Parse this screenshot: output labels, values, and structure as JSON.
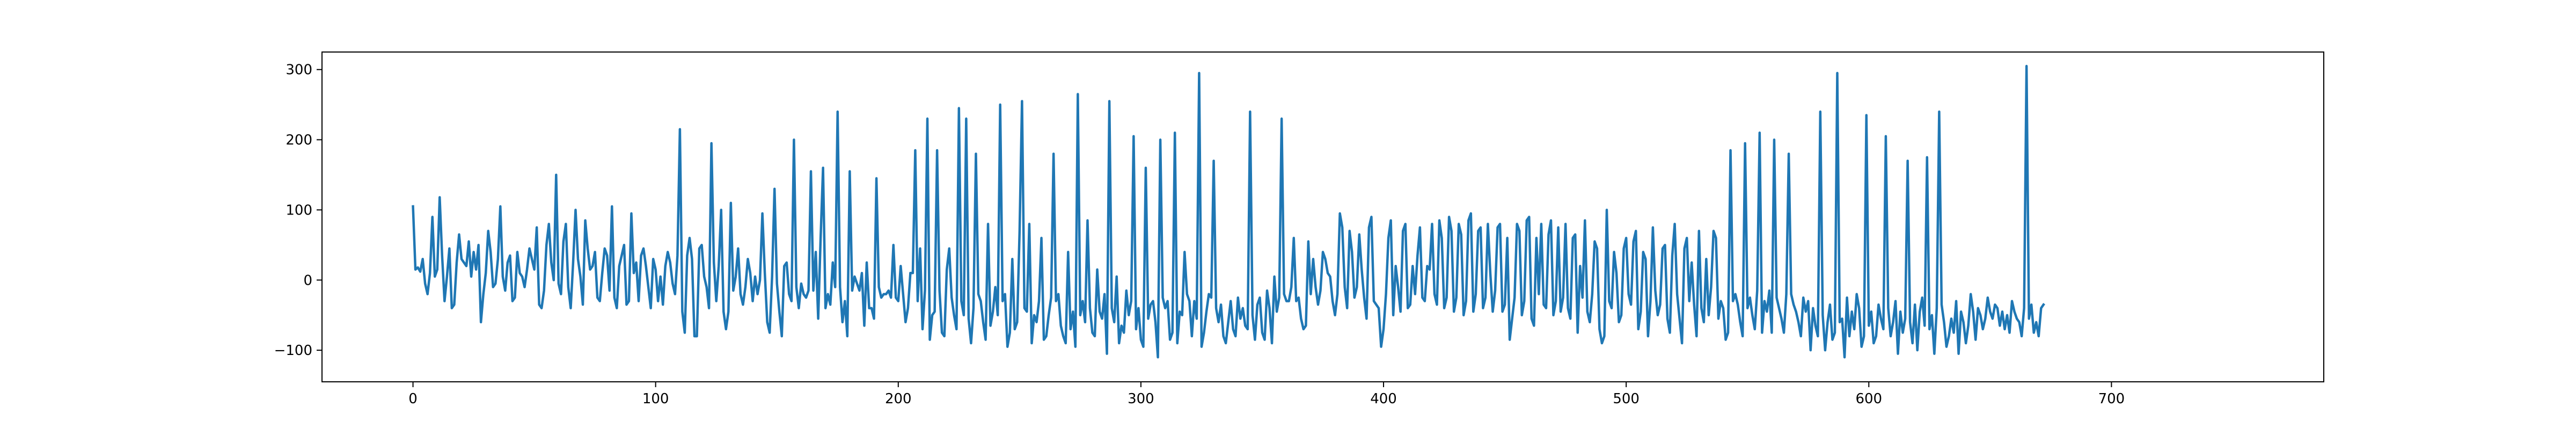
{
  "colors": {
    "line": "#1f77b4",
    "axes": "#000000",
    "background": "#ffffff"
  },
  "chart_data": {
    "type": "line",
    "title": "",
    "xlabel": "",
    "ylabel": "",
    "grid": false,
    "legend": "none",
    "xlim": [
      -37.5,
      787.5
    ],
    "ylim": [
      -145,
      325
    ],
    "xticks": [
      0,
      100,
      200,
      300,
      400,
      500,
      600,
      700
    ],
    "xtick_labels": [
      "0",
      "100",
      "200",
      "300",
      "400",
      "500",
      "600",
      "700"
    ],
    "yticks": [
      -100,
      0,
      100,
      200,
      300
    ],
    "ytick_labels": [
      "−100",
      "0",
      "100",
      "200",
      "300"
    ],
    "series": [
      {
        "color": "#1f77b4",
        "x_start": 0,
        "x_step": 1,
        "y": [
          105,
          15,
          18,
          12,
          30,
          -5,
          -20,
          10,
          90,
          5,
          15,
          118,
          35,
          -30,
          5,
          45,
          -40,
          -35,
          25,
          65,
          30,
          25,
          20,
          55,
          5,
          40,
          15,
          50,
          -60,
          -20,
          10,
          70,
          40,
          -10,
          -5,
          30,
          105,
          5,
          -15,
          25,
          35,
          -30,
          -25,
          40,
          10,
          5,
          -10,
          15,
          45,
          30,
          15,
          75,
          -35,
          -40,
          -15,
          50,
          80,
          25,
          0,
          150,
          -5,
          -20,
          55,
          80,
          -10,
          -40,
          25,
          100,
          30,
          5,
          -35,
          85,
          45,
          15,
          20,
          40,
          -25,
          -30,
          10,
          45,
          35,
          -15,
          105,
          -25,
          -40,
          20,
          35,
          50,
          -35,
          -30,
          95,
          10,
          25,
          -30,
          35,
          45,
          20,
          -10,
          -40,
          30,
          15,
          -30,
          5,
          -35,
          20,
          40,
          25,
          -5,
          -20,
          35,
          215,
          -45,
          -75,
          35,
          60,
          30,
          -80,
          -80,
          45,
          50,
          5,
          -10,
          -40,
          195,
          25,
          -30,
          20,
          100,
          -45,
          -70,
          -45,
          110,
          -15,
          5,
          45,
          -20,
          -35,
          -10,
          30,
          10,
          -30,
          5,
          -20,
          0,
          95,
          10,
          -60,
          -75,
          5,
          130,
          -5,
          -45,
          -80,
          20,
          25,
          -20,
          -30,
          200,
          -10,
          -40,
          -5,
          -20,
          -25,
          -15,
          155,
          -15,
          40,
          -55,
          60,
          160,
          -40,
          -20,
          -35,
          25,
          -10,
          240,
          -10,
          -60,
          -30,
          -80,
          155,
          -15,
          5,
          -5,
          -15,
          10,
          -65,
          25,
          -40,
          -40,
          -55,
          145,
          -10,
          -25,
          -20,
          -20,
          -15,
          -25,
          50,
          -25,
          -30,
          20,
          -20,
          -60,
          -40,
          10,
          10,
          185,
          -30,
          45,
          -70,
          -15,
          230,
          -85,
          -50,
          -45,
          185,
          -15,
          -75,
          -80,
          15,
          45,
          -25,
          -50,
          -70,
          245,
          -30,
          -50,
          230,
          -55,
          -90,
          -40,
          180,
          -20,
          -30,
          -60,
          -85,
          80,
          -65,
          -45,
          -10,
          -50,
          250,
          -30,
          -20,
          -95,
          -75,
          30,
          -70,
          -60,
          70,
          255,
          -40,
          -45,
          80,
          -90,
          -50,
          -60,
          -30,
          60,
          -85,
          -80,
          -50,
          -25,
          180,
          -30,
          -20,
          -65,
          -80,
          -90,
          40,
          -70,
          -45,
          -95,
          265,
          -50,
          -30,
          -60,
          85,
          -40,
          -75,
          -80,
          15,
          -45,
          -55,
          -20,
          -105,
          255,
          -40,
          -60,
          5,
          -90,
          -65,
          -75,
          -15,
          -50,
          -30,
          205,
          -70,
          -40,
          -85,
          -95,
          160,
          -55,
          -35,
          -30,
          -60,
          -110,
          200,
          -25,
          -40,
          -30,
          -85,
          -75,
          210,
          -90,
          -45,
          -50,
          40,
          -20,
          -30,
          -80,
          -30,
          -55,
          295,
          -95,
          -75,
          -45,
          -20,
          -25,
          170,
          -40,
          -60,
          -35,
          -80,
          -90,
          -60,
          -30,
          -70,
          -80,
          -25,
          -55,
          -40,
          -65,
          -70,
          240,
          -50,
          -85,
          -35,
          -25,
          -75,
          -85,
          -15,
          -40,
          -90,
          5,
          -45,
          -25,
          230,
          -20,
          -30,
          -30,
          -10,
          60,
          -30,
          -25,
          -55,
          -70,
          -65,
          55,
          -20,
          30,
          -10,
          -35,
          -15,
          40,
          30,
          10,
          5,
          -30,
          -50,
          -20,
          95,
          75,
          -10,
          -40,
          70,
          40,
          -25,
          -10,
          65,
          15,
          -25,
          -55,
          75,
          90,
          -30,
          -35,
          -40,
          -95,
          -70,
          -20,
          60,
          85,
          -50,
          20,
          -10,
          -45,
          70,
          80,
          -40,
          -35,
          20,
          -20,
          35,
          75,
          -25,
          -30,
          20,
          15,
          80,
          -20,
          -35,
          85,
          60,
          -40,
          -25,
          90,
          70,
          -45,
          -25,
          80,
          65,
          -50,
          -30,
          85,
          95,
          -45,
          -20,
          70,
          75,
          -40,
          -25,
          80,
          10,
          -45,
          -15,
          75,
          80,
          -45,
          -35,
          60,
          -85,
          -55,
          -25,
          80,
          70,
          -50,
          -30,
          85,
          90,
          -55,
          -65,
          60,
          -20,
          80,
          -35,
          -40,
          65,
          85,
          -50,
          -30,
          75,
          -45,
          -25,
          80,
          -40,
          -55,
          60,
          65,
          -75,
          20,
          -25,
          85,
          -45,
          -60,
          -20,
          55,
          45,
          -70,
          -90,
          -80,
          100,
          -30,
          -40,
          40,
          10,
          -60,
          -50,
          45,
          60,
          -20,
          -35,
          55,
          70,
          -70,
          -45,
          40,
          30,
          -80,
          -30,
          75,
          -15,
          -50,
          -35,
          45,
          50,
          -55,
          -75,
          35,
          80,
          -20,
          -55,
          -90,
          45,
          60,
          -30,
          25,
          -35,
          -80,
          70,
          -40,
          -60,
          30,
          -50,
          -10,
          70,
          60,
          -55,
          -30,
          -40,
          -85,
          -75,
          185,
          -30,
          -20,
          -35,
          -60,
          -80,
          195,
          -40,
          -25,
          -50,
          -70,
          -15,
          210,
          -75,
          -30,
          -45,
          -15,
          -75,
          200,
          -25,
          -40,
          -55,
          -75,
          -20,
          180,
          -20,
          -35,
          -45,
          -60,
          -80,
          -25,
          -45,
          -30,
          -100,
          -40,
          -65,
          -80,
          240,
          -50,
          -100,
          -60,
          -35,
          -85,
          -75,
          295,
          -60,
          -55,
          -110,
          -25,
          -80,
          -45,
          -70,
          -20,
          -40,
          -95,
          -80,
          235,
          -65,
          -45,
          -90,
          -80,
          -35,
          -55,
          -70,
          205,
          -40,
          -80,
          -60,
          -30,
          -105,
          -45,
          -75,
          -55,
          170,
          -60,
          -90,
          -35,
          -100,
          -45,
          -25,
          -65,
          175,
          -70,
          -50,
          -105,
          -40,
          240,
          -35,
          -60,
          -95,
          -80,
          -55,
          -75,
          -30,
          -105,
          -45,
          -60,
          -90,
          -65,
          -20,
          -45,
          -85,
          -40,
          -50,
          -70,
          -55,
          -25,
          -45,
          -55,
          -35,
          -40,
          -65,
          -45,
          -70,
          -50,
          -75,
          -30,
          -45,
          -55,
          -60,
          -80,
          -40,
          305,
          -55,
          -35,
          -75,
          -60,
          -80,
          -40,
          -35
        ]
      }
    ]
  }
}
